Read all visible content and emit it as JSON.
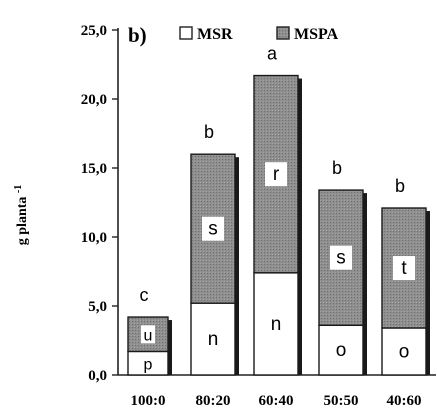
{
  "chart_data": {
    "type": "bar",
    "stacked": true,
    "panel_label": "b)",
    "ylabel": "g planta",
    "ylabel_exponent": "-1",
    "ylim": [
      0,
      25
    ],
    "y_ticks": [
      "0,0",
      "5,0",
      "10,0",
      "15,0",
      "20,0",
      "25,0"
    ],
    "y_tick_values": [
      0,
      5,
      10,
      15,
      20,
      25
    ],
    "categories": [
      "100:0",
      "80:20",
      "60:40",
      "50:50",
      "40:60"
    ],
    "series": [
      {
        "name": "MSR",
        "values": [
          1.7,
          5.2,
          7.4,
          3.6,
          3.4
        ]
      },
      {
        "name": "MSPA",
        "values": [
          2.5,
          10.8,
          14.3,
          9.8,
          8.7
        ]
      }
    ],
    "totals": [
      4.2,
      16.0,
      21.7,
      13.4,
      12.1
    ],
    "group_letters": [
      "c",
      "b",
      "a",
      "b",
      "b"
    ],
    "msr_letters": [
      "p",
      "n",
      "n",
      "o",
      "o"
    ],
    "mspa_letters": [
      "u",
      "s",
      "r",
      "s",
      "t"
    ],
    "colors": {
      "MSR": "#ffffff",
      "MSPA": "#8a8a8a",
      "shadow": "#1a1a1a",
      "outline": "#1a1a1a"
    },
    "legend_placement": "top",
    "grid": false
  }
}
